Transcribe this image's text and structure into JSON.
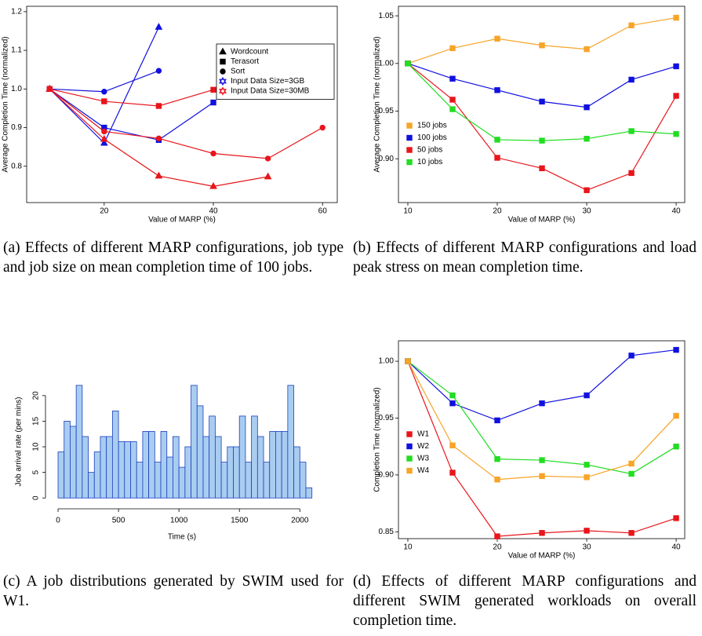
{
  "chart_data": [
    {
      "type": "line",
      "caption": "(a) Effects of different MARP configurations, job type and job size on mean completion time of 100 jobs.",
      "xlabel": "Value of MARP (%)",
      "ylabel": "Average Completion Time (normalized)",
      "xlim": [
        5.8,
        62.7
      ],
      "ylim": [
        0.706,
        1.214
      ],
      "xticks": [
        20,
        40,
        60
      ],
      "yticks": [
        0.8,
        0.9,
        {
          "value": 1.0,
          "label": "1.0"
        },
        1.1,
        1.2
      ],
      "legend_loc": "center right",
      "legend": [
        {
          "name": "Wordcount",
          "marker": "triangle",
          "color": "#000000"
        },
        {
          "name": "Terasort",
          "marker": "square",
          "color": "#000000"
        },
        {
          "name": "Sort",
          "marker": "circle",
          "color": "#000000"
        },
        {
          "name": "Input Data Size=3GB",
          "marker": "star",
          "color": "#1010e0"
        },
        {
          "name": "Input Data Size=30MB",
          "marker": "star",
          "color": "#e8151b"
        }
      ],
      "series": [
        {
          "marker": "triangle",
          "color": "#1010e0",
          "x": [
            10,
            20,
            30
          ],
          "values": [
            1.0,
            0.86,
            1.16
          ]
        },
        {
          "marker": "square",
          "color": "#1010e0",
          "x": [
            10,
            20,
            30,
            40
          ],
          "values": [
            1.0,
            0.9,
            0.868,
            0.965
          ]
        },
        {
          "marker": "circle",
          "color": "#1010e0",
          "x": [
            10,
            20,
            30
          ],
          "values": [
            1.0,
            0.993,
            1.047
          ]
        },
        {
          "marker": "triangle",
          "color": "#e8151b",
          "x": [
            10,
            20,
            30,
            40,
            50
          ],
          "values": [
            1.0,
            0.87,
            0.775,
            0.748,
            0.773
          ]
        },
        {
          "marker": "square",
          "color": "#e8151b",
          "x": [
            10,
            20,
            30,
            40
          ],
          "values": [
            1.0,
            0.968,
            0.956,
            0.998
          ]
        },
        {
          "marker": "circle",
          "color": "#e8151b",
          "x": [
            10,
            20,
            30,
            40,
            50,
            60
          ],
          "values": [
            1.0,
            0.89,
            0.872,
            0.833,
            0.82,
            0.9
          ]
        }
      ]
    },
    {
      "type": "line",
      "caption": "(b) Effects of different MARP configurations and load peak stress on mean completion time.",
      "xlabel": "Value of MARP (%)",
      "ylabel": "Average Completion Time (normalized)",
      "xlim": [
        8.95,
        40.96
      ],
      "ylim": [
        0.854,
        1.06
      ],
      "xticks": [
        10,
        20,
        30,
        40
      ],
      "yticks": [
        {
          "value": 0.9,
          "label": "0.90"
        },
        0.95,
        {
          "value": 1.0,
          "label": "1.00"
        },
        1.05
      ],
      "legend_loc": "center left",
      "x": [
        10,
        15,
        20,
        25,
        30,
        35,
        40
      ],
      "series": [
        {
          "name": "150 jobs",
          "color": "#f7a428",
          "values": [
            1.0,
            1.016,
            1.026,
            1.019,
            1.015,
            1.04,
            1.048
          ]
        },
        {
          "name": "100 jobs",
          "color": "#1010e0",
          "values": [
            1.0,
            0.984,
            0.972,
            0.96,
            0.954,
            0.983,
            0.997
          ]
        },
        {
          "name": "50 jobs",
          "color": "#e8151b",
          "values": [
            1.0,
            0.962,
            0.901,
            0.89,
            0.867,
            0.885,
            0.966
          ]
        },
        {
          "name": "10 jobs",
          "color": "#22dd22",
          "values": [
            1.0,
            0.952,
            0.92,
            0.919,
            0.921,
            0.929,
            0.926
          ]
        }
      ]
    },
    {
      "type": "histogram",
      "caption": "(c) A job distributions generated by SWIM used for W1.",
      "xlabel": "Time (s)",
      "ylabel": "Job arrival rate (per mins)",
      "color": "#a9cdf0",
      "edgecolor": "#1a3fc0",
      "xlim": [
        -65,
        2115
      ],
      "ylim": [
        -1.5,
        23.5
      ],
      "xticks": [
        0,
        500,
        1000,
        1500,
        2000
      ],
      "yticks": [
        0,
        5,
        10,
        15,
        20
      ],
      "bins": [
        0,
        50,
        100,
        150,
        200,
        250,
        300,
        350,
        400,
        450,
        500,
        550,
        600,
        650,
        700,
        750,
        800,
        850,
        900,
        950,
        1000,
        1050,
        1100,
        1150,
        1200,
        1250,
        1300,
        1350,
        1400,
        1450,
        1500,
        1550,
        1600,
        1650,
        1700,
        1750,
        1800,
        1850,
        1900,
        1950,
        2000,
        2050,
        2100
      ],
      "values": [
        9,
        15,
        14,
        22,
        12,
        5,
        9,
        12,
        12,
        17,
        11,
        11,
        11,
        7,
        13,
        13,
        7,
        13,
        8,
        12,
        6,
        10,
        22,
        18,
        12,
        16,
        12,
        7,
        10,
        10,
        16,
        7,
        16,
        12,
        7,
        13,
        13,
        13,
        22,
        10,
        7,
        2
      ]
    },
    {
      "type": "line",
      "caption": "(d) Effects of different MARP configurations and different SWIM generated workloads on overall completion time.",
      "xlabel": "Value of MARP (%)",
      "ylabel": "Completion Time (normalized)",
      "xlim": [
        8.95,
        40.96
      ],
      "ylim": [
        0.844,
        1.018
      ],
      "xticks": [
        10,
        20,
        30,
        40
      ],
      "yticks": [
        0.85,
        {
          "value": 0.9,
          "label": "0.90"
        },
        0.95,
        {
          "value": 1.0,
          "label": "1.00"
        }
      ],
      "legend_loc": "lower left",
      "x": [
        10,
        15,
        20,
        25,
        30,
        35,
        40
      ],
      "series": [
        {
          "name": "W1",
          "color": "#e8151b",
          "values": [
            1.0,
            0.902,
            0.846,
            0.849,
            0.851,
            0.849,
            0.862
          ]
        },
        {
          "name": "W2",
          "color": "#1010e0",
          "values": [
            1.0,
            0.963,
            0.948,
            0.963,
            0.97,
            1.005,
            1.01
          ]
        },
        {
          "name": "W3",
          "color": "#22dd22",
          "values": [
            1.0,
            0.97,
            0.914,
            0.913,
            0.909,
            0.901,
            0.925
          ]
        },
        {
          "name": "W4",
          "color": "#f7a428",
          "values": [
            1.0,
            0.926,
            0.896,
            0.899,
            0.898,
            0.91,
            0.952
          ]
        }
      ]
    }
  ]
}
